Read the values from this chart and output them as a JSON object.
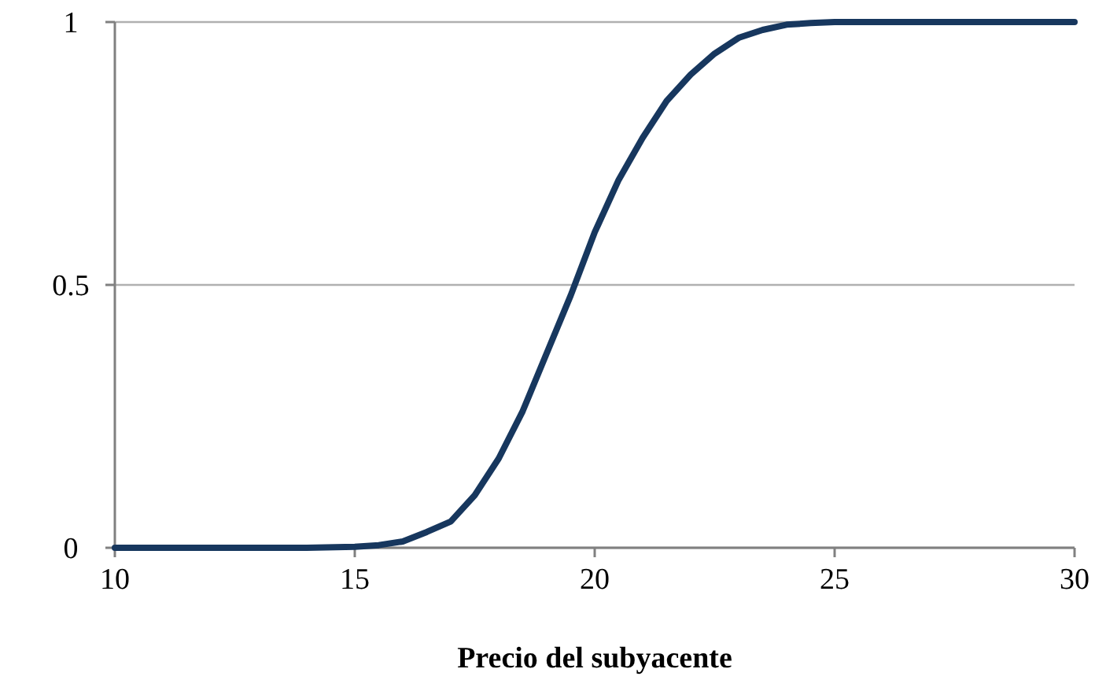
{
  "chart_data": {
    "type": "line",
    "xlabel": "Precio del subyacente",
    "x": [
      10,
      12,
      14,
      15,
      15.5,
      16,
      16.5,
      17,
      17.5,
      18,
      18.5,
      19,
      19.5,
      20,
      20.5,
      21,
      21.5,
      22,
      22.5,
      23,
      23.5,
      24,
      24.5,
      25,
      27,
      30
    ],
    "series": [
      {
        "color": "#17375e",
        "values": [
          0,
          0,
          0,
          0.002,
          0.005,
          0.012,
          0.03,
          0.05,
          0.1,
          0.17,
          0.26,
          0.37,
          0.48,
          0.6,
          0.7,
          0.78,
          0.85,
          0.9,
          0.94,
          0.97,
          0.985,
          0.995,
          0.998,
          1,
          1,
          1
        ]
      }
    ],
    "xlim": [
      10,
      30
    ],
    "xticks": [
      10,
      15,
      20,
      25,
      30
    ],
    "ylim": [
      0,
      1
    ],
    "yticks": [
      0,
      0.5,
      1
    ],
    "grid": "y",
    "marker": "none",
    "line_style": "solid"
  }
}
